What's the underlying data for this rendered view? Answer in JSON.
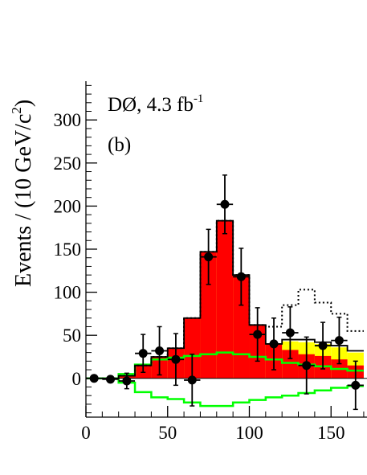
{
  "chart_data": {
    "type": "histogram",
    "ylabel": "Events / (10 GeV/c",
    "ylabel_sup": "2",
    "ylabel_close": ")",
    "annotation_line1": "DØ, 4.3 fb",
    "annotation_line1_sup": "-1",
    "annotation_line2": "(b)",
    "xlim": [
      0,
      172
    ],
    "ylim": [
      -45,
      345
    ],
    "x_ticks": [
      "0",
      "50",
      "100",
      "150"
    ],
    "x_tick_values": [
      0,
      50,
      100,
      150
    ],
    "y_ticks": [
      "0",
      "50",
      "100",
      "150",
      "200",
      "250",
      "300"
    ],
    "y_tick_values": [
      0,
      50,
      100,
      150,
      200,
      250,
      300
    ],
    "bin_edges": [
      0,
      10,
      20,
      30,
      40,
      50,
      60,
      70,
      80,
      90,
      100,
      110,
      120,
      130,
      140,
      150,
      160,
      170
    ],
    "colors": {
      "signal": "#ff0000",
      "yellow": "#ffff00",
      "green_band": "#00ff00",
      "outline": "#000000",
      "data": "#000000"
    },
    "series": [
      {
        "kind": "stacked_fill_red",
        "values": [
          0,
          0,
          3,
          15,
          25,
          35,
          70,
          147,
          183,
          120,
          62,
          40,
          33,
          28,
          26,
          22,
          15
        ]
      },
      {
        "kind": "stacked_fill_yellow",
        "values": [
          0,
          0,
          3,
          15,
          25,
          35,
          70,
          147,
          183,
          120,
          62,
          40,
          43,
          42,
          40,
          36,
          30
        ]
      },
      {
        "kind": "step_outline_black",
        "values": [
          0,
          0,
          3,
          15,
          25,
          35,
          70,
          147,
          183,
          120,
          62,
          40,
          45,
          45,
          42,
          38,
          32
        ]
      },
      {
        "kind": "step_dotted_black",
        "values": [
          0,
          0,
          3,
          15,
          25,
          35,
          70,
          147,
          183,
          120,
          62,
          60,
          85,
          103,
          88,
          75,
          55
        ]
      },
      {
        "kind": "green_band_upper",
        "values": [
          0,
          0,
          5,
          16,
          22,
          24,
          26,
          28,
          30,
          28,
          25,
          22,
          18,
          16,
          14,
          11,
          9
        ]
      },
      {
        "kind": "green_band_lower",
        "values": [
          0,
          0,
          -5,
          -16,
          -22,
          -24,
          -28,
          -32,
          -32,
          -28,
          -25,
          -22,
          -20,
          -17,
          -14,
          -11,
          -9
        ]
      }
    ],
    "data_points": [
      {
        "x": 5,
        "y": 0,
        "yerr": 0
      },
      {
        "x": 15,
        "y": -1,
        "yerr": 0
      },
      {
        "x": 25,
        "y": -3,
        "yerr": 9
      },
      {
        "x": 35,
        "y": 29,
        "yerr": 22
      },
      {
        "x": 45,
        "y": 32,
        "yerr": 28
      },
      {
        "x": 55,
        "y": 22,
        "yerr": 30
      },
      {
        "x": 65,
        "y": -2,
        "yerr": 30
      },
      {
        "x": 75,
        "y": 141,
        "yerr": 32
      },
      {
        "x": 85,
        "y": 202,
        "yerr": 34
      },
      {
        "x": 95,
        "y": 118,
        "yerr": 33
      },
      {
        "x": 105,
        "y": 51,
        "yerr": 31
      },
      {
        "x": 115,
        "y": 40,
        "yerr": 30
      },
      {
        "x": 125,
        "y": 53,
        "yerr": 30
      },
      {
        "x": 135,
        "y": 15,
        "yerr": 33
      },
      {
        "x": 145,
        "y": 38,
        "yerr": 27
      },
      {
        "x": 155,
        "y": 44,
        "yerr": 27
      },
      {
        "x": 165,
        "y": -8,
        "yerr": 28
      }
    ]
  }
}
